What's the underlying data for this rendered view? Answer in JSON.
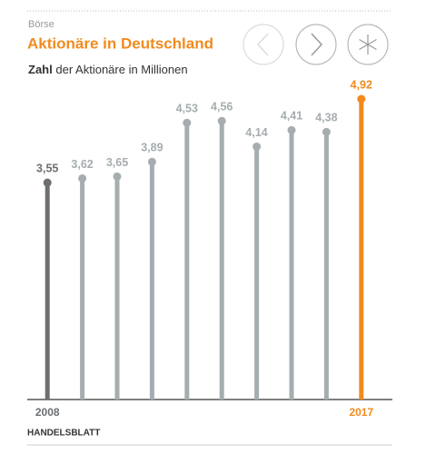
{
  "kicker": "Börse",
  "source": "HANDELSBLATT",
  "chart_data": {
    "type": "lollipop",
    "title": "Aktionäre in Deutschland",
    "subtitle_emphasis": "Zahl",
    "subtitle": "der Aktionäre in Millionen",
    "categories": [
      "2008",
      null,
      null,
      null,
      null,
      null,
      null,
      null,
      null,
      "2017"
    ],
    "values": [
      3.55,
      3.62,
      3.65,
      3.89,
      4.53,
      4.56,
      4.14,
      4.41,
      4.38,
      4.92
    ],
    "value_labels": [
      "3,55",
      "3,62",
      "3,65",
      "3,89",
      "4,53",
      "4,56",
      "4,14",
      "4,41",
      "4,38",
      "4,92"
    ],
    "colors": [
      "#6b7072",
      "#a5adaf",
      "#a5adaf",
      "#a5adaf",
      "#a5adaf",
      "#a5adaf",
      "#a5adaf",
      "#a5adaf",
      "#a5adaf",
      "#f28a1e"
    ],
    "ylim": [
      0,
      5.5
    ]
  }
}
